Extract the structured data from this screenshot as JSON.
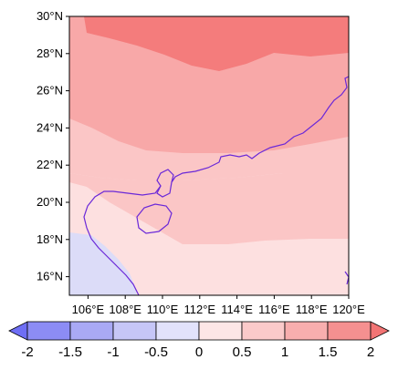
{
  "map": {
    "lat_labels": [
      "30°N",
      "28°N",
      "26°N",
      "24°N",
      "22°N",
      "20°N",
      "18°N",
      "16°N"
    ],
    "lon_labels": [
      "106°E",
      "108°E",
      "110°E",
      "112°E",
      "114°E",
      "116°E",
      "118°E",
      "120°E"
    ],
    "lon_range": [
      105,
      120
    ],
    "lat_range": [
      15,
      30
    ],
    "coastline_color": "#6a28d8",
    "contour_colors": {
      "-0.5": "#dcdcf8",
      "0": "#fde0e0",
      "0.5": "#fbc6c6",
      "1": "#f8a8a8",
      "1.5": "#f47c7c"
    }
  },
  "colorbar": {
    "labels": [
      "-2",
      "-1.5",
      "-1",
      "-0.5",
      "0",
      "0.5",
      "1",
      "1.5",
      "2"
    ],
    "colors": [
      "#6e6ef5",
      "#8c8cf5",
      "#a9a9f5",
      "#c6c6f7",
      "#e2e2fb",
      "#fde6e6",
      "#fbcaca",
      "#f8aeae",
      "#f59090",
      "#f27474"
    ]
  }
}
